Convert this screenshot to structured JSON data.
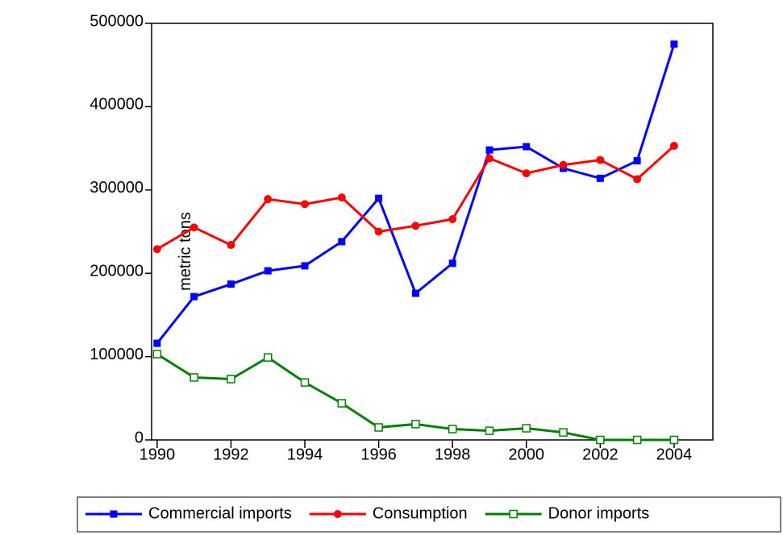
{
  "chart_data": {
    "type": "line",
    "y_label": "metric tons",
    "x": [
      1990,
      1991,
      1992,
      1993,
      1994,
      1995,
      1996,
      1997,
      1998,
      1999,
      2000,
      2001,
      2002,
      2003,
      2004
    ],
    "series": [
      {
        "name": "Commercial imports",
        "color": "#0000ff",
        "marker": "square",
        "values": [
          116000,
          172000,
          187000,
          203000,
          209000,
          238000,
          290000,
          176000,
          212000,
          348000,
          352000,
          326000,
          314000,
          335000,
          475000
        ]
      },
      {
        "name": "Consumption",
        "color": "#ff0000",
        "marker": "circle",
        "values": [
          229000,
          255000,
          234000,
          289000,
          283000,
          291000,
          250000,
          257000,
          265000,
          338000,
          320000,
          330000,
          336000,
          313000,
          353000
        ]
      },
      {
        "name": "Donor imports",
        "color": "#008000",
        "marker": "open-square",
        "values": [
          103000,
          75000,
          73000,
          99000,
          69000,
          44000,
          15000,
          19000,
          13000,
          11000,
          14000,
          9000,
          0,
          0,
          0
        ]
      }
    ],
    "xlim": [
      1989.85,
      2005.05
    ],
    "xticks": [
      1990,
      1992,
      1994,
      1996,
      1998,
      2000,
      2002,
      2004
    ],
    "ylim": [
      0,
      500000
    ],
    "yticks": [
      0,
      100000,
      200000,
      300000,
      400000,
      500000
    ],
    "legend": "bottom"
  }
}
